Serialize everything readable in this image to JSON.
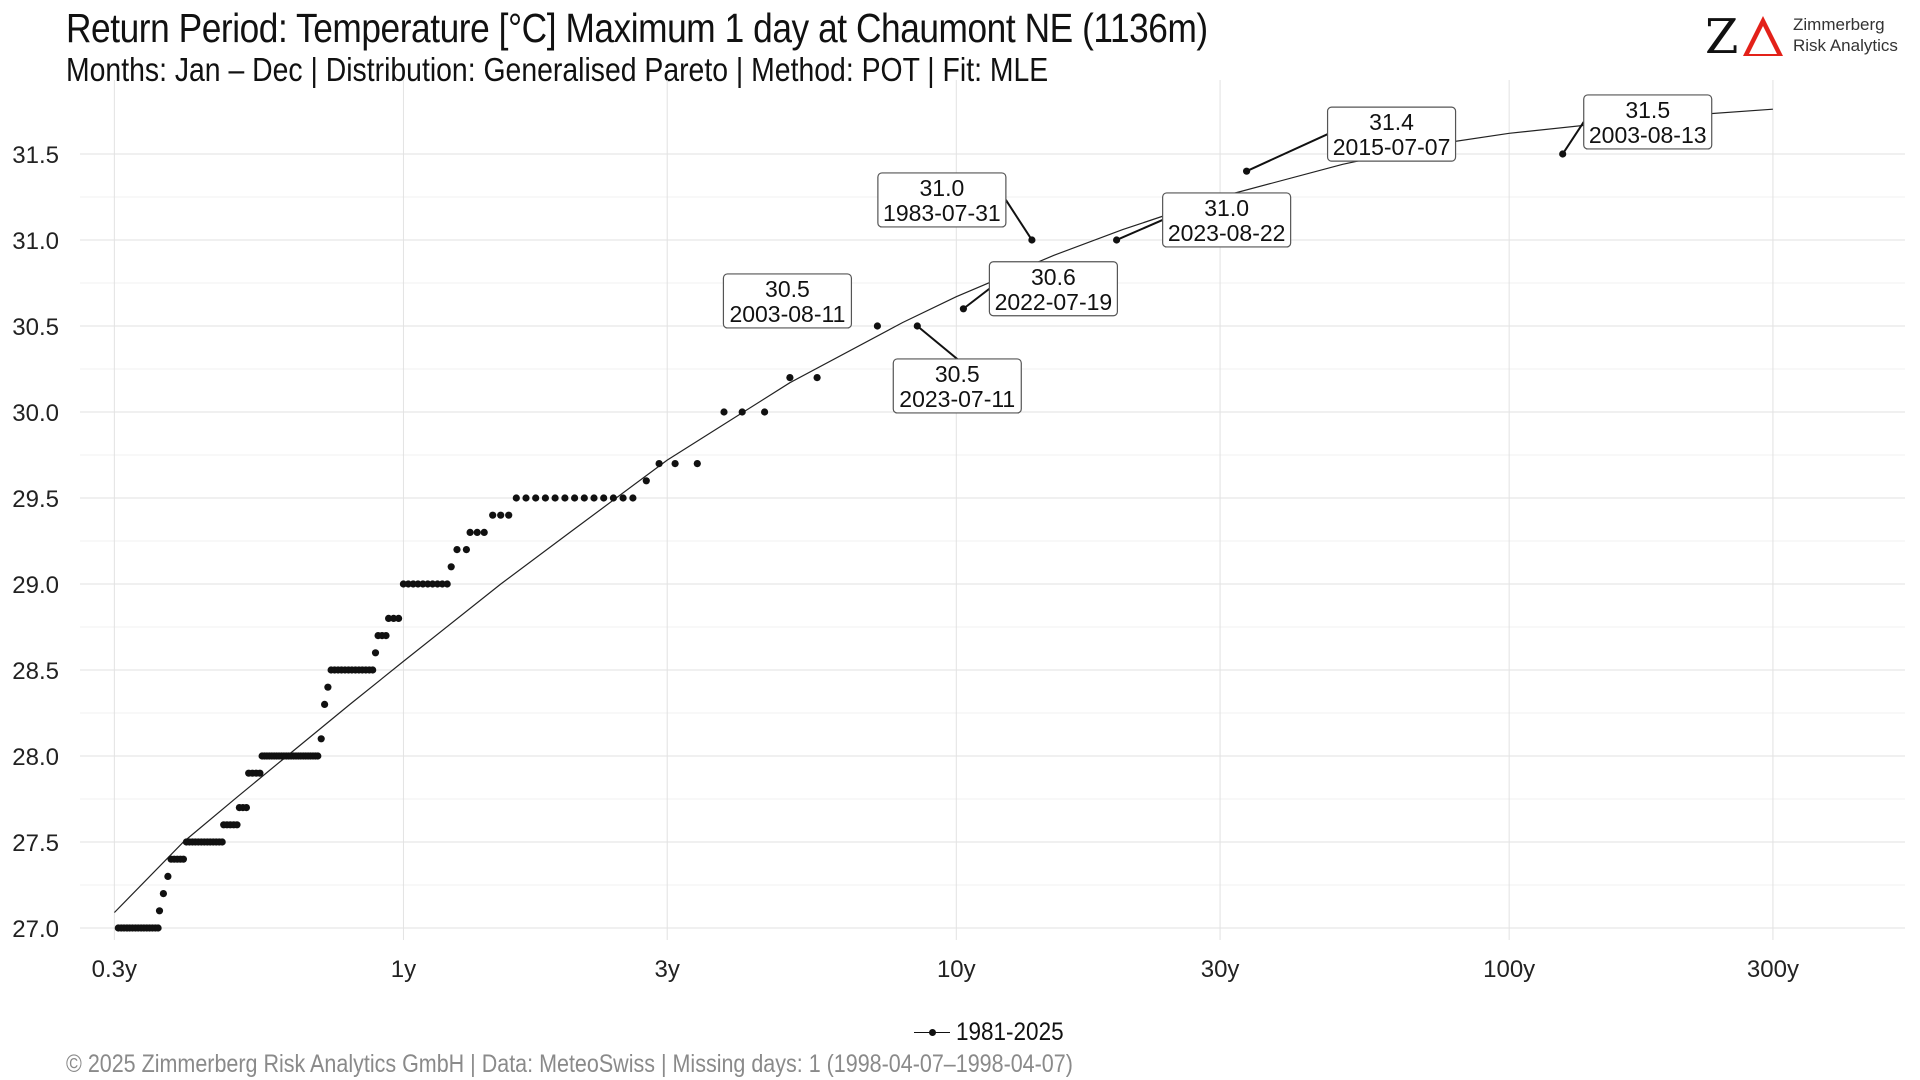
{
  "header": {
    "title": "Return Period: Temperature [°C] Maximum 1 day at Chaumont  NE (1136m)",
    "subtitle": "Months: Jan – Dec | Distribution: Generalised Pareto | Method: POT | Fit: MLE"
  },
  "logo": {
    "mark": "Z",
    "name_line1": "Zimmerberg",
    "name_line2": "Risk Analytics",
    "accent_color": "#e32119"
  },
  "footer": {
    "caption": "©  2025 Zimmerberg Risk Analytics GmbH | Data: MeteoSwiss | Missing days: 1 (1998-04-07–1998-04-07)"
  },
  "chart_data": {
    "type": "scatter",
    "x_scale": "log",
    "x_unit": "return period (years)",
    "xlim": [
      0.26,
      520
    ],
    "ylim": [
      26.93,
      31.93
    ],
    "xticks": [
      {
        "value": 0.3,
        "label": "0.3y"
      },
      {
        "value": 1,
        "label": "1y"
      },
      {
        "value": 3,
        "label": "3y"
      },
      {
        "value": 10,
        "label": "10y"
      },
      {
        "value": 30,
        "label": "30y"
      },
      {
        "value": 100,
        "label": "100y"
      },
      {
        "value": 300,
        "label": "300y"
      }
    ],
    "yticks": [
      {
        "value": 27.0,
        "label": "27.0"
      },
      {
        "value": 27.5,
        "label": "27.5"
      },
      {
        "value": 28.0,
        "label": "28.0"
      },
      {
        "value": 28.5,
        "label": "28.5"
      },
      {
        "value": 29.0,
        "label": "29.0"
      },
      {
        "value": 29.5,
        "label": "29.5"
      },
      {
        "value": 30.0,
        "label": "30.0"
      },
      {
        "value": 30.5,
        "label": "30.5"
      },
      {
        "value": 31.0,
        "label": "31.0"
      },
      {
        "value": 31.5,
        "label": "31.5"
      }
    ],
    "grid": true,
    "legend": {
      "position": "bottom",
      "label": "1981-2025"
    },
    "fit_curve": {
      "name": "Generalised Pareto fit",
      "points": [
        [
          0.3,
          27.09
        ],
        [
          0.4,
          27.5
        ],
        [
          0.5,
          27.76
        ],
        [
          0.6,
          27.97
        ],
        [
          0.8,
          28.3
        ],
        [
          1,
          28.55
        ],
        [
          1.5,
          29.0
        ],
        [
          2,
          29.3
        ],
        [
          3,
          29.72
        ],
        [
          5,
          30.17
        ],
        [
          8,
          30.52
        ],
        [
          10,
          30.67
        ],
        [
          15,
          30.91
        ],
        [
          20,
          31.06
        ],
        [
          30,
          31.25
        ],
        [
          50,
          31.44
        ],
        [
          75,
          31.56
        ],
        [
          100,
          31.62
        ],
        [
          150,
          31.68
        ],
        [
          200,
          31.72
        ],
        [
          300,
          31.76
        ]
      ]
    },
    "groups": [
      {
        "y": 27.0,
        "x_from": 0.305,
        "x_to": 0.36,
        "n": 15
      },
      {
        "y": 27.1,
        "x": [
          0.362
        ]
      },
      {
        "y": 27.2,
        "x": [
          0.368
        ]
      },
      {
        "y": 27.3,
        "x": [
          0.375
        ]
      },
      {
        "y": 27.4,
        "x_from": 0.38,
        "x_to": 0.4,
        "n": 5
      },
      {
        "y": 27.5,
        "x_from": 0.405,
        "x_to": 0.47,
        "n": 13
      },
      {
        "y": 27.6,
        "x_from": 0.473,
        "x_to": 0.5,
        "n": 5
      },
      {
        "y": 27.7,
        "x_from": 0.505,
        "x_to": 0.52,
        "n": 3
      },
      {
        "y": 27.9,
        "x_from": 0.525,
        "x_to": 0.55,
        "n": 4
      },
      {
        "y": 28.0,
        "x_from": 0.555,
        "x_to": 0.7,
        "n": 24
      },
      {
        "y": 28.1,
        "x": [
          0.71
        ]
      },
      {
        "y": 28.3,
        "x": [
          0.72
        ]
      },
      {
        "y": 28.4,
        "x": [
          0.73
        ]
      },
      {
        "y": 28.5,
        "x_from": 0.74,
        "x_to": 0.88,
        "n": 13
      },
      {
        "y": 28.6,
        "x": [
          0.89
        ]
      },
      {
        "y": 28.7,
        "x_from": 0.9,
        "x_to": 0.93,
        "n": 3
      },
      {
        "y": 28.8,
        "x_from": 0.94,
        "x_to": 0.98,
        "n": 3
      },
      {
        "y": 29.0,
        "x_from": 1.0,
        "x_to": 1.2,
        "n": 10
      },
      {
        "y": 29.1,
        "x": [
          1.22
        ]
      },
      {
        "y": 29.2,
        "x_from": 1.25,
        "x_to": 1.3,
        "n": 2
      },
      {
        "y": 29.3,
        "x_from": 1.32,
        "x_to": 1.4,
        "n": 3
      },
      {
        "y": 29.4,
        "x_from": 1.45,
        "x_to": 1.55,
        "n": 3
      },
      {
        "y": 29.5,
        "x_from": 1.6,
        "x_to": 2.6,
        "n": 13
      },
      {
        "y": 29.6,
        "x": [
          2.75
        ]
      },
      {
        "y": 29.7,
        "x": [
          2.9,
          3.1,
          3.4
        ]
      },
      {
        "y": 30.0,
        "x": [
          3.8,
          4.1,
          4.5
        ]
      },
      {
        "y": 30.2,
        "x": [
          5.0,
          5.6
        ]
      },
      {
        "y": 30.5,
        "x": [
          7.2
        ]
      }
    ],
    "annotated": [
      {
        "x": 8.5,
        "y": 30.5,
        "value": "30.5",
        "date": "2023-07-11"
      },
      {
        "x": 10.3,
        "y": 30.6,
        "value": "30.6",
        "date": "2022-07-19"
      },
      {
        "x": 13.7,
        "y": 31.0,
        "value": "31.0",
        "date": "1983-07-31"
      },
      {
        "x": 19.5,
        "y": 31.0,
        "value": "31.0",
        "date": "2023-08-22"
      },
      {
        "x": 33.5,
        "y": 31.4,
        "value": "31.4",
        "date": "2015-07-07"
      },
      {
        "x": 125,
        "y": 31.5,
        "value": "31.5",
        "date": "2003-08-13"
      },
      {
        "value": "30.5",
        "date": "2003-08-11",
        "ref_x": 7.2,
        "ref_y": 30.5
      }
    ]
  }
}
